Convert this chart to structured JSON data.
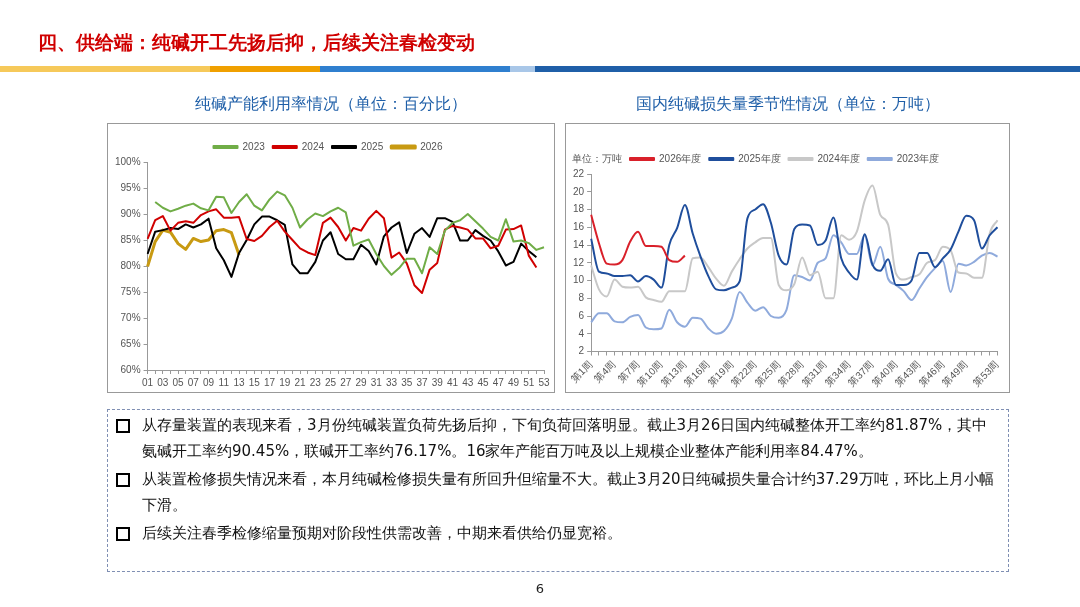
{
  "chart_data": [
    {
      "type": "other",
      "title": "四、供给端：纯碱开工先扬后抑，后续关注春检变动",
      "annotations": [
        "6"
      ]
    },
    {
      "type": "line",
      "title": "纯碱产能利用率情况（单位：百分比）",
      "legend": "top",
      "marker": "none",
      "categories": [
        "01",
        null,
        "03",
        null,
        "05",
        null,
        "07",
        null,
        "09",
        null,
        "11",
        null,
        "13",
        null,
        "15",
        null,
        "17",
        null,
        "19",
        null,
        "21",
        null,
        "23",
        null,
        "25",
        null,
        "27",
        null,
        "29",
        null,
        "31",
        null,
        "33",
        null,
        "35",
        null,
        "37",
        null,
        "39",
        null,
        "41",
        null,
        "43",
        null,
        "45",
        null,
        "47",
        null,
        "49",
        null,
        "51",
        null,
        "53"
      ],
      "ylim": [
        60,
        100
      ],
      "yticks": [
        {
          "value": 60,
          "label": "60%"
        },
        {
          "value": 65,
          "label": "65%"
        },
        {
          "value": 70,
          "label": "70%"
        },
        {
          "value": 75,
          "label": "75%"
        },
        {
          "value": 80,
          "label": "80%"
        },
        {
          "value": 85,
          "label": "85%"
        },
        {
          "value": 90,
          "label": "90%"
        },
        {
          "value": 95,
          "label": "95%"
        },
        {
          "value": 100,
          "label": "100%"
        }
      ],
      "series": [
        {
          "name": "2023",
          "color": "#70ad47",
          "values": [
            null,
            92.3,
            91.2,
            90.5,
            91,
            91.6,
            92,
            91.1,
            90.7,
            93.3,
            93.2,
            90.2,
            92.3,
            93.8,
            91.6,
            90.7,
            92.8,
            94.3,
            93.6,
            91.2,
            87.4,
            89,
            90.1,
            89.6,
            90.5,
            91.2,
            90.3,
            83.9,
            84.6,
            85.1,
            82.3,
            80,
            78.3,
            79.6,
            81.4,
            81.4,
            78.6,
            83.6,
            82.3,
            86.8,
            88.3,
            88.8,
            90,
            88.6,
            87.2,
            85.6,
            84.9,
            89,
            84.7,
            84.9,
            84.4,
            83.1,
            83.6
          ]
        },
        {
          "name": "2024",
          "color": "#d00000",
          "values": [
            85.2,
            88.8,
            89.6,
            86.8,
            88.3,
            88.6,
            88.3,
            89.8,
            90.5,
            90.9,
            89.3,
            89.3,
            89.4,
            85.2,
            84.8,
            85.8,
            87.5,
            88.7,
            86.6,
            85,
            83.4,
            82.6,
            82.1,
            88.3,
            89.3,
            87.5,
            84.9,
            87.3,
            86.8,
            89.1,
            90.6,
            89.2,
            81.6,
            82.6,
            80.5,
            76.3,
            74.8,
            79.3,
            80.6,
            87,
            87.7,
            87.4,
            87,
            85.3,
            85.3,
            83.4,
            83.9,
            87,
            87.1,
            87.8,
            82,
            79.7,
            null
          ]
        },
        {
          "name": "2025",
          "color": "#000000",
          "values": [
            82.3,
            86.6,
            86.9,
            87.3,
            87.1,
            88,
            87.4,
            88,
            89.1,
            83.4,
            81.1,
            77.9,
            82.5,
            85,
            88,
            89.5,
            89.5,
            88.8,
            87.9,
            80.3,
            78.6,
            78.6,
            80.8,
            84.9,
            86.5,
            82.3,
            81.3,
            81.3,
            84.1,
            82.9,
            80.3,
            85.7,
            87.4,
            88.4,
            82.5,
            86.2,
            87.3,
            85.6,
            89.2,
            89.2,
            88.5,
            84.9,
            84.9,
            86.9,
            85.8,
            84.9,
            82.8,
            80.1,
            80.8,
            84.3,
            82.9,
            81.7,
            null
          ]
        },
        {
          "name": "2026",
          "color": "#c89a12",
          "values": [
            79.9,
            84.7,
            86.9,
            86.5,
            84.3,
            83.2,
            85.3,
            84.7,
            85,
            86.8,
            87,
            86.4,
            82.1,
            null,
            null,
            null,
            null,
            null,
            null,
            null,
            null,
            null,
            null,
            null,
            null,
            null,
            null,
            null,
            null,
            null,
            null,
            null,
            null,
            null,
            null,
            null,
            null,
            null,
            null,
            null,
            null,
            null,
            null,
            null,
            null,
            null,
            null,
            null,
            null,
            null,
            null,
            null,
            null
          ]
        }
      ]
    },
    {
      "type": "line",
      "title": "国内纯碱损失量季节性情况（单位：万吨）",
      "legend": "top",
      "marker": "none",
      "annotations": [
        "单位：万吨"
      ],
      "categories": [
        "第1周",
        null,
        null,
        "第4周",
        null,
        null,
        "第7周",
        null,
        null,
        "第10周",
        null,
        null,
        "第13周",
        null,
        null,
        "第16周",
        null,
        null,
        "第19周",
        null,
        null,
        "第22周",
        null,
        null,
        "第25周",
        null,
        null,
        "第28周",
        null,
        null,
        "第31周",
        null,
        null,
        "第34周",
        null,
        null,
        "第37周",
        null,
        null,
        "第40周",
        null,
        null,
        "第43周",
        null,
        null,
        "第46周",
        null,
        null,
        "第49周",
        null,
        null,
        null,
        "第53周"
      ],
      "ylim": [
        2,
        22
      ],
      "yticks": [
        2,
        4,
        6,
        8,
        10,
        12,
        14,
        16,
        18,
        20,
        22
      ],
      "series": [
        {
          "name": "2026年度",
          "color": "#d9202a",
          "values": [
            17.4,
            14.2,
            11.9,
            11.8,
            12.3,
            14.4,
            15.5,
            13.9,
            13.9,
            13.8,
            12.3,
            12.1,
            12.8,
            null,
            null,
            null,
            null,
            null,
            null,
            null,
            null,
            null,
            null,
            null,
            null,
            null,
            null,
            null,
            null,
            null,
            null,
            null,
            null,
            null,
            null,
            null,
            null,
            null,
            null,
            null,
            null,
            null,
            null,
            null,
            null,
            null,
            null,
            null,
            null,
            null,
            null,
            null,
            null
          ]
        },
        {
          "name": "2025年度",
          "color": "#1f4e9c",
          "values": [
            14.7,
            11,
            10.8,
            10.5,
            10.5,
            10.6,
            9.9,
            10.5,
            10.1,
            9.2,
            14,
            15.9,
            18.5,
            15.3,
            12.7,
            10.5,
            9,
            8.9,
            9.2,
            9.9,
            17,
            18,
            18.6,
            16.5,
            12.8,
            11.8,
            15.8,
            16.3,
            16.2,
            14,
            14.5,
            17.1,
            12.5,
            10.9,
            10.1,
            15.2,
            11.8,
            11.1,
            12.4,
            9.5,
            9.5,
            10,
            13.1,
            13.1,
            11.5,
            12.5,
            13.5,
            15.5,
            17.3,
            16.8,
            13.6,
            15.1,
            16
          ]
        },
        {
          "name": "2024年度",
          "color": "#c8c8c8",
          "values": [
            11.7,
            9,
            8.2,
            10.1,
            9.3,
            9.2,
            9.3,
            8.1,
            7.8,
            7.6,
            8.8,
            8.8,
            8.8,
            12.5,
            12.6,
            11.5,
            10.2,
            9.4,
            11,
            12.4,
            13.6,
            14.3,
            14.8,
            14.8,
            9.5,
            8.9,
            9.6,
            12.6,
            10.6,
            11,
            8,
            8,
            15.1,
            14.6,
            15.5,
            19,
            20.7,
            17.4,
            16.3,
            10.8,
            10.1,
            10.4,
            10.7,
            12,
            12.3,
            13.8,
            13.4,
            10.9,
            10.8,
            10.3,
            10.3,
            15.3,
            16.8
          ]
        },
        {
          "name": "2023年度",
          "color": "#8faadc",
          "values": [
            5.3,
            6.3,
            6.3,
            5.4,
            5.3,
            5.9,
            6.1,
            4.7,
            4.5,
            4.6,
            6.7,
            5.3,
            4.8,
            5.8,
            5.7,
            4.6,
            4,
            4.3,
            5.7,
            8.7,
            7.5,
            6.6,
            7,
            6,
            5.8,
            6.7,
            10.6,
            10.4,
            10,
            12,
            12.5,
            15.1,
            14.3,
            13,
            13,
            15.1,
            11.7,
            13.8,
            10.2,
            9.5,
            8.8,
            7.8,
            9.1,
            10.4,
            11.4,
            12.2,
            8.7,
            11.9,
            11.7,
            12.1,
            12.8,
            13.1,
            12.7
          ]
        }
      ]
    },
    {
      "type": "other",
      "annotations": [
        "从存量装置的表现来看，3月份纯碱装置负荷先扬后抑，下旬负荷回落明显。截止3月26日国内纯碱整体开工率约81.87%，其中氨碱开工率约90.45%，联碱开工率约76.17%。16家年产能百万吨及以上规模企业整体产能利用率84.47%。",
        "从装置检修损失情况来看，本月纯碱检修损失量有所回升但缩量不大。截止3月20日纯碱损失量合计约37.29万吨，环比上月小幅下滑。",
        "后续关注春季检修缩量预期对阶段性供需改善，中期来看供给仍显宽裕。"
      ]
    }
  ]
}
